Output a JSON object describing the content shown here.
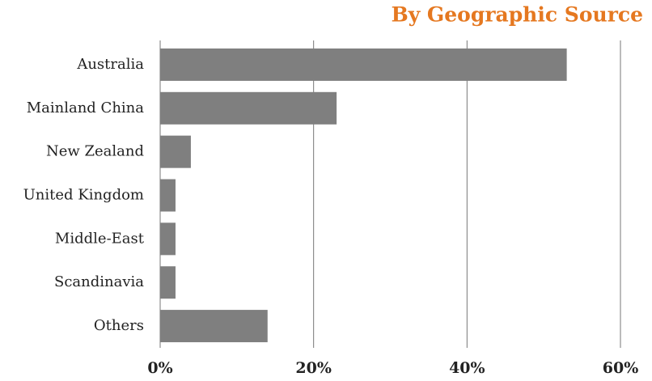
{
  "chart_data": {
    "type": "bar",
    "orientation": "horizontal",
    "title": "By Geographic Source",
    "categories": [
      "Australia",
      "Mainland China",
      "New Zealand",
      "United Kingdom",
      "Middle-East",
      "Scandinavia",
      "Others"
    ],
    "values": [
      53,
      23,
      4,
      2,
      2,
      2,
      14
    ],
    "color": "#7f7f7f",
    "xlim": [
      0,
      60
    ],
    "xticks": [
      {
        "value": 0,
        "label": "0%"
      },
      {
        "value": 20,
        "label": "20%"
      },
      {
        "value": 40,
        "label": "40%"
      },
      {
        "value": 60,
        "label": "60%"
      }
    ],
    "grid": true
  }
}
